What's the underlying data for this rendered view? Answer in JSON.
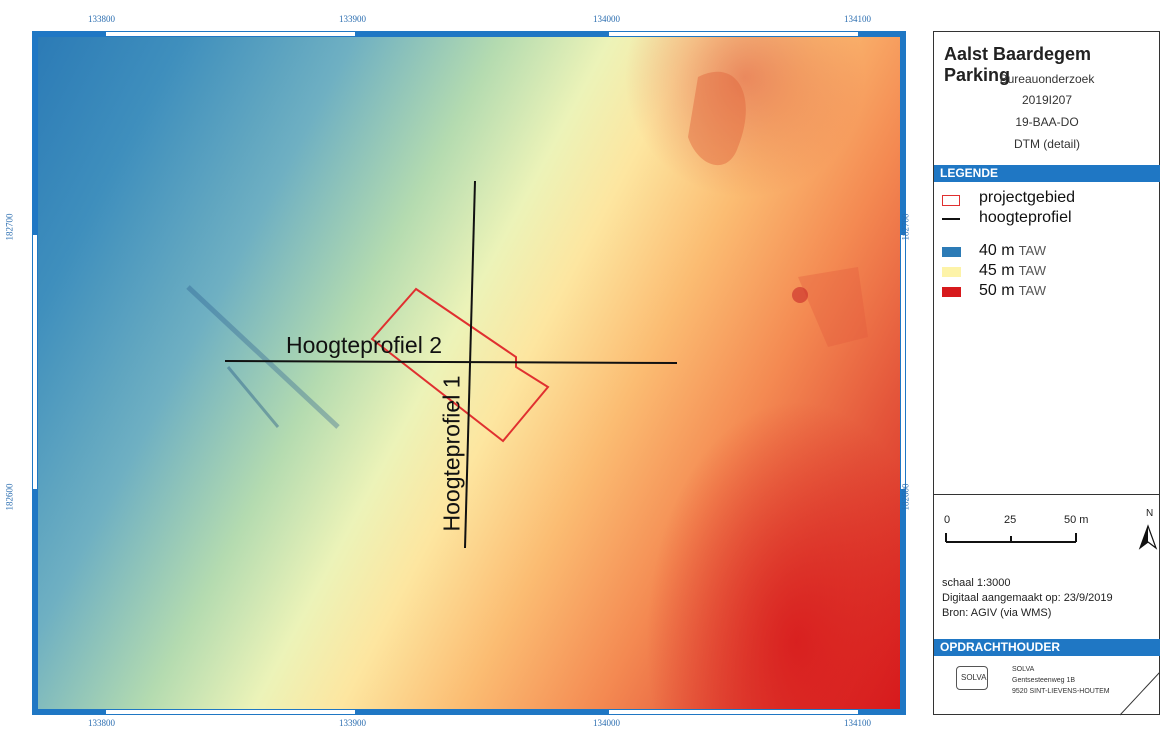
{
  "map": {
    "x_ticks": [
      "133800",
      "133900",
      "134000",
      "134100"
    ],
    "y_ticks": [
      "182700",
      "182600"
    ],
    "labels": {
      "profile1": "Hoogteprofiel 1",
      "profile2": "Hoogteprofiel 2"
    },
    "colors": {
      "low": "#2c7bb6",
      "mid": "#ffffbf",
      "high": "#d7191c",
      "project_area": "#e03030",
      "profile_line": "#111111",
      "frame": "#1f77c4"
    }
  },
  "panel": {
    "title": "Aalst Baardegem Parking",
    "subtitle_lines": [
      "Bureauonderzoek",
      "2019I207",
      "19-BAA-DO",
      "DTM (detail)"
    ],
    "legend_header": "LEGENDE",
    "legend": [
      {
        "label": "projectgebied",
        "icon": "red-outline-rectangle"
      },
      {
        "label": "hoogteprofiel",
        "icon": "black-line"
      },
      {
        "value": "40 m",
        "unit": "TAW",
        "color": "#2c7bb6"
      },
      {
        "value": "45 m",
        "unit": "TAW",
        "color": "#fdf3a8"
      },
      {
        "value": "50 m",
        "unit": "TAW",
        "color": "#d7191c"
      }
    ],
    "scalebar": {
      "labels": [
        "0",
        "25",
        "50 m"
      ]
    },
    "north": "N",
    "scale_text": "schaal  1:3000",
    "digital_text": "Digitaal aangemaakt op: 23/9/2019",
    "source_text": "Bron: AGIV (via WMS)",
    "client_header": "OPDRACHTHOUDER",
    "client": {
      "logo_text": "SOLVA",
      "name": "SOLVA",
      "street": "Gentsesteenweg 1B",
      "city": "9520 SINT-LIEVENS-HOUTEM"
    }
  }
}
